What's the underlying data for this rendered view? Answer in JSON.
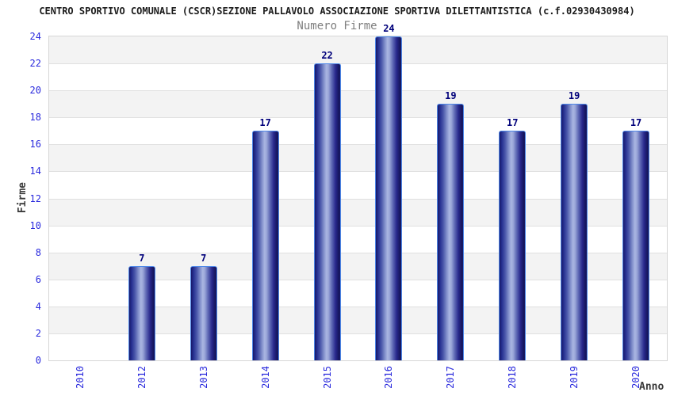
{
  "title": "CENTRO SPORTIVO COMUNALE (CSCR)SEZIONE PALLAVOLO ASSOCIAZIONE SPORTIVA DILETTANTISTICA (c.f.02930430984)",
  "chart_data": {
    "type": "bar",
    "title": "Numero Firme",
    "xlabel": "Anno",
    "ylabel": "Firme",
    "categories": [
      "2010",
      "2012",
      "2013",
      "2014",
      "2015",
      "2016",
      "2017",
      "2018",
      "2019",
      "2020"
    ],
    "values": [
      0,
      7,
      7,
      17,
      22,
      24,
      19,
      17,
      19,
      17
    ],
    "ylim": [
      0,
      24
    ],
    "ytick_step": 2,
    "yticks": [
      0,
      2,
      4,
      6,
      8,
      10,
      12,
      14,
      16,
      18,
      20,
      22,
      24
    ],
    "grid": true,
    "legend_position": "none",
    "plot_bands": "alternating gray/white horizontal bands every 2 units, gray at top interval 22-24",
    "bar_value_labels_shown": true,
    "colors": {
      "tick_label": "#2929dd",
      "value_label": "#00007a",
      "bar_dark": "#181868",
      "bar_light": "#aab6e2",
      "bar_border": "#4d87e8",
      "band_gray": "#f3f3f3",
      "band_white": "#ffffff",
      "grid_line": "#e0e0e0",
      "frame_border": "#d6d6d6",
      "title_color": "#1b1b1b",
      "subtitle_color": "#7e7e7e",
      "axis_title_color": "#3a3a3a"
    }
  }
}
